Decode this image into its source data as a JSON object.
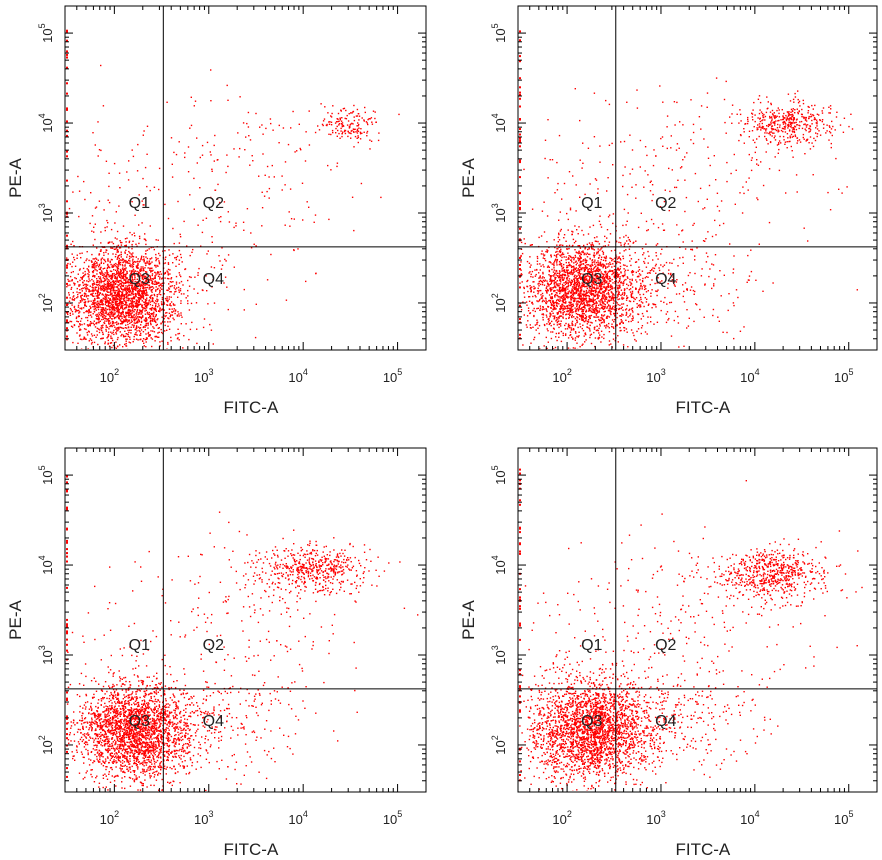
{
  "chart_data": [
    {
      "type": "scatter",
      "panel": "top-left",
      "xlabel": "FITC-A",
      "ylabel": "PE-A",
      "x_scale": "log",
      "y_scale": "log",
      "xlim": [
        30,
        200000
      ],
      "ylim": [
        30,
        200000
      ],
      "x_ticks": [
        100,
        1000,
        10000,
        100000
      ],
      "y_ticks": [
        100,
        1000,
        10000,
        100000
      ],
      "x_tick_labels": [
        {
          "base": "10",
          "exp": "2"
        },
        {
          "base": "10",
          "exp": "3"
        },
        {
          "base": "10",
          "exp": "4"
        },
        {
          "base": "10",
          "exp": "5"
        }
      ],
      "y_tick_labels": [
        {
          "base": "10",
          "exp": "2"
        },
        {
          "base": "10",
          "exp": "3"
        },
        {
          "base": "10",
          "exp": "4"
        },
        {
          "base": "10",
          "exp": "5"
        }
      ],
      "gate": {
        "x": 330,
        "y": 420
      },
      "quadrant_labels": [
        "Q1",
        "Q2",
        "Q3",
        "Q4"
      ],
      "point_color": "#ff0000",
      "grid": false,
      "clusters": [
        {
          "name": "",
          "center": [
            120,
            120
          ],
          "spread": [
            0.3,
            0.28
          ],
          "count": 2600
        },
        {
          "name": "",
          "center": [
            30000,
            10000
          ],
          "spread": [
            0.18,
            0.1
          ],
          "count": 160
        },
        {
          "name": "",
          "center": [
            1500,
            2500
          ],
          "spread": [
            0.7,
            0.5
          ],
          "count": 200
        },
        {
          "name": "",
          "center": [
            800,
            150
          ],
          "spread": [
            0.5,
            0.35
          ],
          "count": 60
        },
        {
          "name": "",
          "center": [
            100,
            1000
          ],
          "spread": [
            0.35,
            0.5
          ],
          "count": 60
        }
      ]
    },
    {
      "type": "scatter",
      "panel": "top-right",
      "xlabel": "FITC-A",
      "ylabel": "PE-A",
      "x_scale": "log",
      "y_scale": "log",
      "xlim": [
        30,
        200000
      ],
      "ylim": [
        30,
        200000
      ],
      "x_ticks": [
        100,
        1000,
        10000,
        100000
      ],
      "y_ticks": [
        100,
        1000,
        10000,
        100000
      ],
      "x_tick_labels": [
        {
          "base": "10",
          "exp": "2"
        },
        {
          "base": "10",
          "exp": "3"
        },
        {
          "base": "10",
          "exp": "4"
        },
        {
          "base": "10",
          "exp": "5"
        }
      ],
      "y_tick_labels": [
        {
          "base": "10",
          "exp": "2"
        },
        {
          "base": "10",
          "exp": "3"
        },
        {
          "base": "10",
          "exp": "4"
        },
        {
          "base": "10",
          "exp": "5"
        }
      ],
      "gate": {
        "x": 330,
        "y": 420
      },
      "quadrant_labels": [
        "Q1",
        "Q2",
        "Q3",
        "Q4"
      ],
      "point_color": "#ff0000",
      "grid": false,
      "clusters": [
        {
          "name": "",
          "center": [
            150,
            140
          ],
          "spread": [
            0.32,
            0.27
          ],
          "count": 2400
        },
        {
          "name": "",
          "center": [
            22000,
            10000
          ],
          "spread": [
            0.25,
            0.12
          ],
          "count": 420
        },
        {
          "name": "",
          "center": [
            2000,
            2500
          ],
          "spread": [
            0.7,
            0.5
          ],
          "count": 220
        },
        {
          "name": "",
          "center": [
            1200,
            170
          ],
          "spread": [
            0.45,
            0.3
          ],
          "count": 200
        },
        {
          "name": "",
          "center": [
            100,
            1000
          ],
          "spread": [
            0.35,
            0.5
          ],
          "count": 60
        }
      ]
    },
    {
      "type": "scatter",
      "panel": "bottom-left",
      "xlabel": "FITC-A",
      "ylabel": "PE-A",
      "x_scale": "log",
      "y_scale": "log",
      "xlim": [
        30,
        200000
      ],
      "ylim": [
        30,
        200000
      ],
      "x_ticks": [
        100,
        1000,
        10000,
        100000
      ],
      "y_ticks": [
        100,
        1000,
        10000,
        100000
      ],
      "x_tick_labels": [
        {
          "base": "10",
          "exp": "2"
        },
        {
          "base": "10",
          "exp": "3"
        },
        {
          "base": "10",
          "exp": "4"
        },
        {
          "base": "10",
          "exp": "5"
        }
      ],
      "y_tick_labels": [
        {
          "base": "10",
          "exp": "2"
        },
        {
          "base": "10",
          "exp": "3"
        },
        {
          "base": "10",
          "exp": "4"
        },
        {
          "base": "10",
          "exp": "5"
        }
      ],
      "gate": {
        "x": 330,
        "y": 420
      },
      "quadrant_labels": [
        "Q1",
        "Q2",
        "Q3",
        "Q4"
      ],
      "point_color": "#ff0000",
      "grid": false,
      "clusters": [
        {
          "name": "",
          "center": [
            160,
            140
          ],
          "spread": [
            0.3,
            0.26
          ],
          "count": 2400
        },
        {
          "name": "",
          "center": [
            12000,
            9000
          ],
          "spread": [
            0.3,
            0.13
          ],
          "count": 500
        },
        {
          "name": "",
          "center": [
            2000,
            2500
          ],
          "spread": [
            0.7,
            0.5
          ],
          "count": 200
        },
        {
          "name": "",
          "center": [
            1300,
            180
          ],
          "spread": [
            0.45,
            0.3
          ],
          "count": 260
        },
        {
          "name": "",
          "center": [
            100,
            1000
          ],
          "spread": [
            0.35,
            0.5
          ],
          "count": 60
        }
      ]
    },
    {
      "type": "scatter",
      "panel": "bottom-right",
      "xlabel": "FITC-A",
      "ylabel": "PE-A",
      "x_scale": "log",
      "y_scale": "log",
      "xlim": [
        30,
        200000
      ],
      "ylim": [
        30,
        200000
      ],
      "x_ticks": [
        100,
        1000,
        10000,
        100000
      ],
      "y_ticks": [
        100,
        1000,
        10000,
        100000
      ],
      "x_tick_labels": [
        {
          "base": "10",
          "exp": "2"
        },
        {
          "base": "10",
          "exp": "3"
        },
        {
          "base": "10",
          "exp": "4"
        },
        {
          "base": "10",
          "exp": "5"
        }
      ],
      "y_tick_labels": [
        {
          "base": "10",
          "exp": "2"
        },
        {
          "base": "10",
          "exp": "3"
        },
        {
          "base": "10",
          "exp": "4"
        },
        {
          "base": "10",
          "exp": "5"
        }
      ],
      "gate": {
        "x": 330,
        "y": 420
      },
      "quadrant_labels": [
        "Q1",
        "Q2",
        "Q3",
        "Q4"
      ],
      "point_color": "#ff0000",
      "grid": false,
      "clusters": [
        {
          "name": "",
          "center": [
            180,
            150
          ],
          "spread": [
            0.32,
            0.27
          ],
          "count": 2400
        },
        {
          "name": "",
          "center": [
            15000,
            8000
          ],
          "spread": [
            0.3,
            0.14
          ],
          "count": 600
        },
        {
          "name": "",
          "center": [
            2000,
            2500
          ],
          "spread": [
            0.7,
            0.5
          ],
          "count": 220
        },
        {
          "name": "",
          "center": [
            1300,
            180
          ],
          "spread": [
            0.45,
            0.3
          ],
          "count": 300
        },
        {
          "name": "",
          "center": [
            100,
            1000
          ],
          "spread": [
            0.35,
            0.5
          ],
          "count": 60
        }
      ]
    }
  ]
}
